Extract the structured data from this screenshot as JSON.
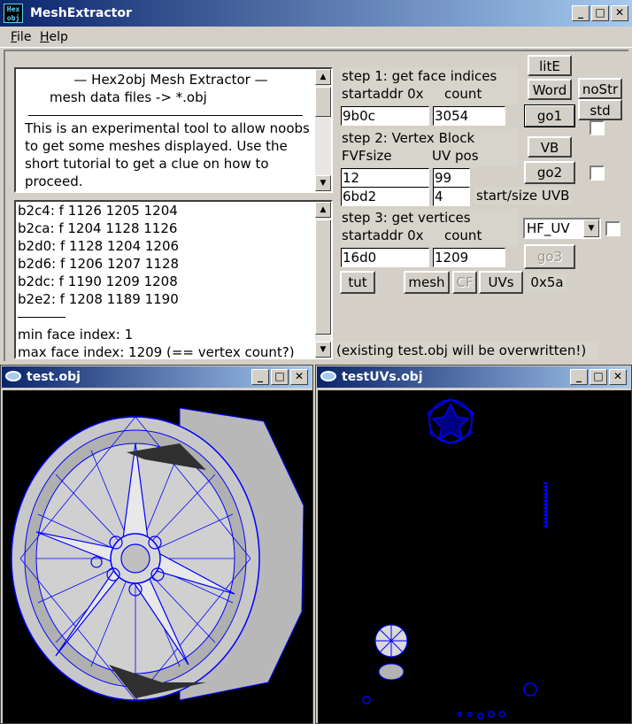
{
  "window": {
    "title": "MeshExtractor",
    "icon_text": "Hex obj",
    "buttons": {
      "minimize": "_",
      "maximize": "□",
      "close": "✕"
    }
  },
  "menu": {
    "file": {
      "mnemonic": "F",
      "rest": "ile"
    },
    "help": {
      "mnemonic": "H",
      "rest": "elp"
    }
  },
  "about": {
    "title_line1": "—   Hex2obj Mesh Extractor   —",
    "title_line2": "mesh data files -> *.obj",
    "body": "This is an experimental tool to allow noobs to get some meshes displayed. Use the short tutorial to get a clue on how to proceed."
  },
  "log": {
    "lines": [
      "b2c4: f  1126 1205 1204",
      "b2ca: f  1204 1128 1126",
      "b2d0: f  1128 1204 1206",
      "b2d6: f  1206 1207 1128",
      "b2dc: f  1190 1209 1208",
      "b2e2: f  1208 1189 1190"
    ],
    "summary": [
      "min face index: 1",
      "max face index: 1209 (== vertex count?)"
    ]
  },
  "step1": {
    "title": "step 1: get face indices",
    "addr_label": "startaddr 0x",
    "count_label": "count",
    "addr_value": "9b0c",
    "count_value": "3054"
  },
  "step2": {
    "title": "step 2: Vertex Block",
    "fvf_label": "FVFsize",
    "uv_label": "UV pos",
    "fvf_value": "12",
    "uv_value": "99",
    "uvb_start_value": "6bd2",
    "uvb_size_value": "4",
    "uvb_label": "start/size UVB"
  },
  "step3": {
    "title": "step 3: get vertices",
    "addr_label": "startaddr 0x",
    "count_label": "count",
    "addr_value": "16d0",
    "count_value": "1209"
  },
  "buttons": {
    "lite": "litE",
    "word": "Word",
    "nostr": "noStr",
    "std": "std",
    "go1": "go1",
    "vb": "VB",
    "go2": "go2",
    "go3": "go3",
    "tut": "tut",
    "mesh": "mesh",
    "cf": "CF",
    "uvs": "UVs"
  },
  "format_select": {
    "selected": "HF_UV"
  },
  "hex_readout": "0x5a",
  "warning": "(existing test.obj will be overwritten!)",
  "child_windows": {
    "mesh": {
      "title": "test.obj"
    },
    "uv": {
      "title": "testUVs.obj"
    }
  },
  "colors": {
    "titlebar_start": "#0a246a",
    "titlebar_end": "#a6caf0",
    "wireframe": "#0000ff",
    "mesh_fill": "#c0c0c0",
    "canvas_bg": "#000000"
  }
}
